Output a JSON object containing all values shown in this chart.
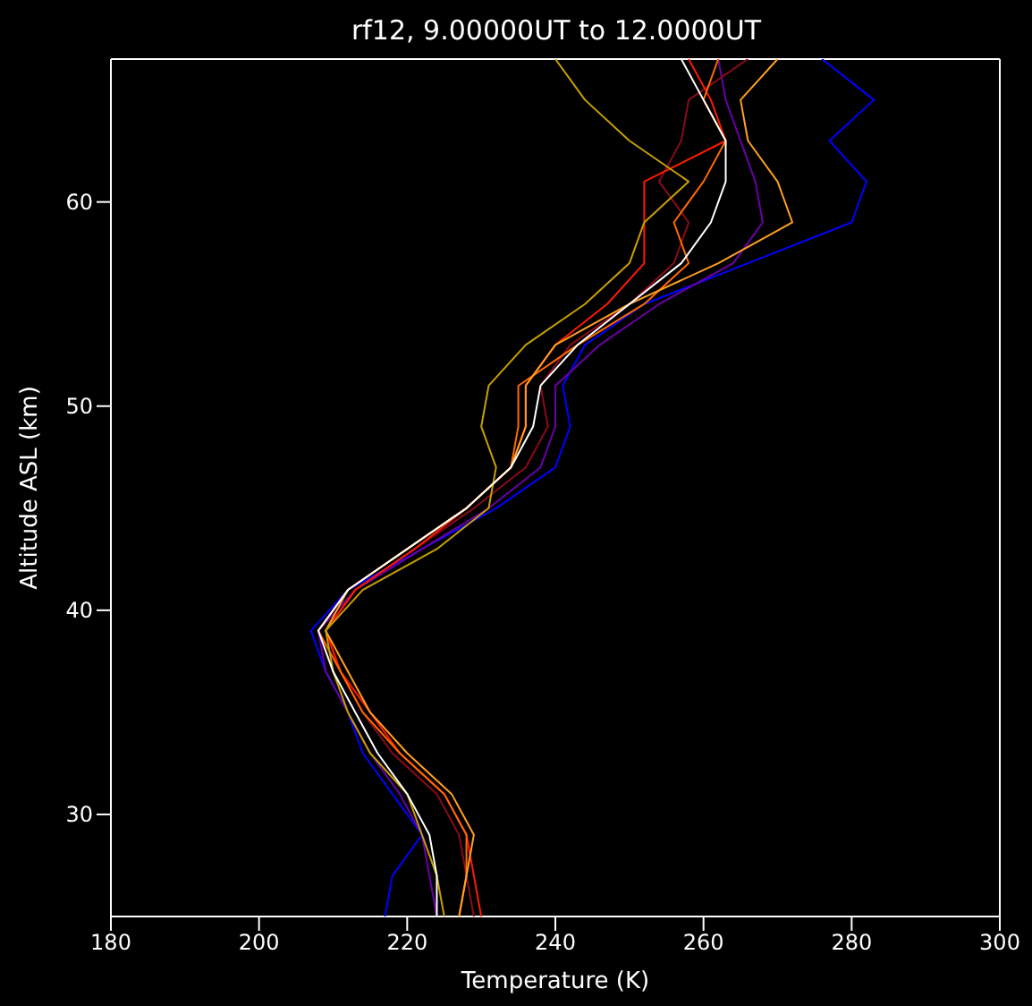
{
  "chart_data": {
    "type": "line",
    "title": "rf12, 9.00000UT to 12.0000UT",
    "xlabel": "Temperature (K)",
    "ylabel": "Altitude ASL (km)",
    "xlim": [
      180,
      300
    ],
    "xticks": [
      180,
      200,
      220,
      240,
      260,
      280,
      300
    ],
    "ylim": [
      25,
      67
    ],
    "yticks": [
      30,
      40,
      50,
      60
    ],
    "grid": false,
    "marker": "none",
    "line_style": "solid",
    "series": [
      {
        "color": "#0000ff",
        "x": [
          217,
          218,
          222,
          218,
          214,
          212,
          209,
          207,
          212,
          222,
          232,
          240,
          242,
          241,
          244,
          252,
          266,
          280,
          282,
          277,
          283,
          276
        ],
        "values": [
          25,
          27,
          29,
          31,
          33,
          35,
          37,
          39,
          41,
          43,
          45,
          47,
          49,
          51,
          53,
          55,
          57,
          59,
          61,
          63,
          65,
          67
        ]
      },
      {
        "color": "#6a00a8",
        "x": [
          224,
          223,
          222,
          219,
          215,
          212,
          209,
          208,
          213,
          222,
          231,
          238,
          240,
          240,
          246,
          254,
          264,
          268,
          267,
          265,
          263,
          262
        ],
        "values": [
          25,
          27,
          29,
          31,
          33,
          35,
          37,
          39,
          41,
          43,
          45,
          47,
          49,
          51,
          53,
          55,
          57,
          59,
          61,
          63,
          65,
          67
        ]
      },
      {
        "color": "#8b0a1a",
        "x": [
          229,
          228,
          227,
          224,
          218,
          214,
          211,
          209,
          213,
          221,
          229,
          236,
          239,
          238,
          242,
          250,
          256,
          258,
          254,
          257,
          258,
          266
        ],
        "values": [
          25,
          27,
          29,
          31,
          33,
          35,
          37,
          39,
          41,
          43,
          45,
          47,
          49,
          51,
          53,
          55,
          57,
          59,
          61,
          63,
          65,
          67
        ]
      },
      {
        "color": "#ff1a00",
        "x": [
          230,
          229,
          228,
          225,
          219,
          215,
          211,
          209,
          213,
          221,
          228,
          234,
          236,
          236,
          240,
          247,
          252,
          252,
          252,
          263,
          261,
          258
        ],
        "values": [
          25,
          27,
          29,
          31,
          33,
          35,
          37,
          39,
          41,
          43,
          45,
          47,
          49,
          51,
          53,
          55,
          57,
          59,
          61,
          63,
          65,
          67
        ]
      },
      {
        "color": "#ff6a00",
        "x": [
          227,
          228,
          228,
          225,
          219,
          214,
          211,
          208,
          212,
          220,
          228,
          234,
          235,
          235,
          243,
          252,
          258,
          256,
          260,
          263,
          260,
          262
        ],
        "values": [
          25,
          27,
          29,
          31,
          33,
          35,
          37,
          39,
          41,
          43,
          45,
          47,
          49,
          51,
          53,
          55,
          57,
          59,
          61,
          63,
          65,
          67
        ]
      },
      {
        "color": "#ffa020",
        "x": [
          227,
          228,
          229,
          226,
          220,
          215,
          212,
          209,
          212,
          220,
          228,
          234,
          236,
          236,
          240,
          250,
          262,
          272,
          270,
          266,
          265,
          270
        ],
        "values": [
          25,
          27,
          29,
          31,
          33,
          35,
          37,
          39,
          41,
          43,
          45,
          47,
          49,
          51,
          53,
          55,
          57,
          59,
          61,
          63,
          65,
          67
        ]
      },
      {
        "color": "#c8a000",
        "x": [
          225,
          224,
          222,
          220,
          215,
          212,
          210,
          209,
          214,
          224,
          231,
          232,
          230,
          231,
          236,
          244,
          250,
          252,
          258,
          250,
          244,
          240
        ],
        "values": [
          25,
          27,
          29,
          31,
          33,
          35,
          37,
          39,
          41,
          43,
          45,
          47,
          49,
          51,
          53,
          55,
          57,
          59,
          61,
          63,
          65,
          67
        ]
      },
      {
        "color": "#ffffff",
        "x": [
          224,
          224,
          223,
          220,
          216,
          213,
          210,
          208,
          212,
          220,
          228,
          234,
          237,
          238,
          243,
          250,
          257,
          261,
          263,
          263,
          260,
          257
        ],
        "values": [
          25,
          27,
          29,
          31,
          33,
          35,
          37,
          39,
          41,
          43,
          45,
          47,
          49,
          51,
          53,
          55,
          57,
          59,
          61,
          63,
          65,
          67
        ]
      }
    ]
  }
}
